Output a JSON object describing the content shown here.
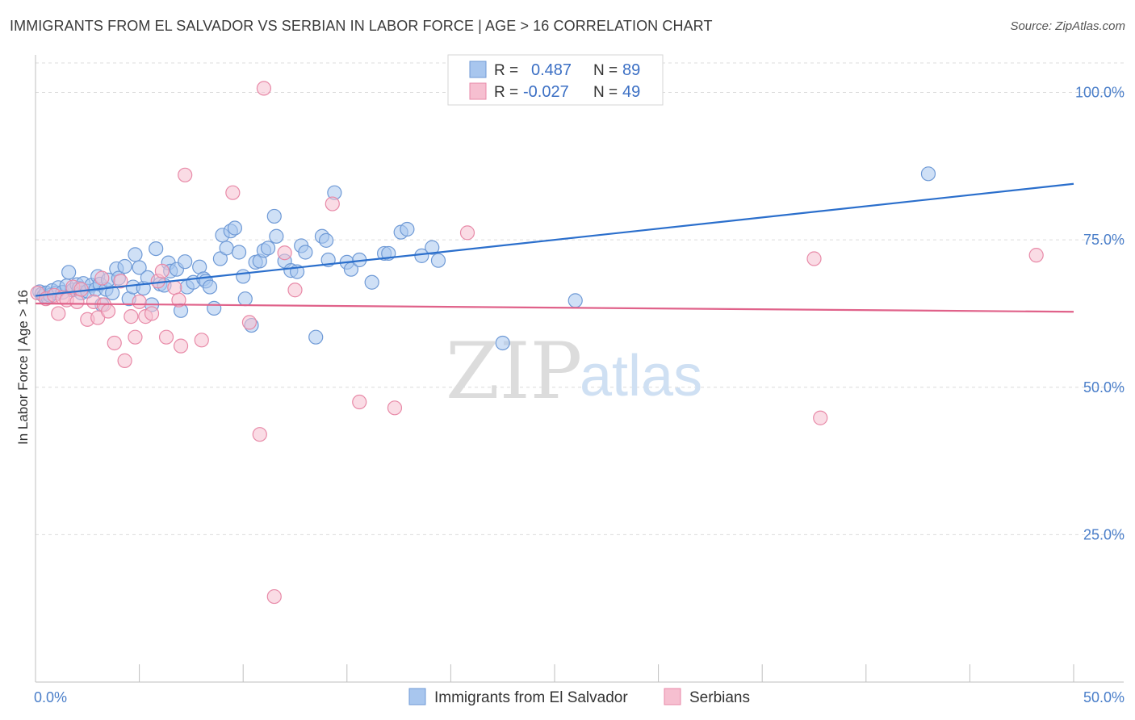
{
  "title": "IMMIGRANTS FROM EL SALVADOR VS SERBIAN IN LABOR FORCE | AGE > 16 CORRELATION CHART",
  "source": "Source: ZipAtlas.com",
  "watermark": {
    "zip": "ZIP",
    "atlas": "atlas"
  },
  "legend": {
    "rows": [
      {
        "r_label": "R =",
        "r_value": "0.487",
        "n_label": "N =",
        "n_value": "89",
        "color": "#a8c6ee",
        "stroke": "#6f9ad6"
      },
      {
        "r_label": "R =",
        "r_value": "-0.027",
        "n_label": "N =",
        "n_value": "49",
        "color": "#f6bfd0",
        "stroke": "#e88aa8"
      }
    ]
  },
  "bottom_legend": [
    {
      "label": "Immigrants from El Salvador",
      "color": "#a8c6ee",
      "stroke": "#6f9ad6"
    },
    {
      "label": "Serbians",
      "color": "#f6bfd0",
      "stroke": "#e88aa8"
    }
  ],
  "chart_data": {
    "type": "scatter",
    "xlabel": "",
    "ylabel": "In Labor Force | Age > 16",
    "xlim": [
      0,
      50
    ],
    "ylim": [
      0,
      105
    ],
    "x_tick_labels": [
      {
        "value": 0,
        "label": "0.0%"
      },
      {
        "value": 50,
        "label": "50.0%"
      }
    ],
    "y_tick_labels": [
      {
        "value": 25,
        "label": "25.0%"
      },
      {
        "value": 50,
        "label": "50.0%"
      },
      {
        "value": 75,
        "label": "75.0%"
      },
      {
        "value": 100,
        "label": "100.0%"
      }
    ],
    "x_minor_ticks": [
      0,
      5,
      10,
      15,
      20,
      25,
      30,
      35,
      40,
      45,
      50
    ],
    "grid": true,
    "series": [
      {
        "name": "Immigrants from El Salvador",
        "color": "#a8c6ee",
        "stroke": "#6f9ad6",
        "trend": {
          "x": [
            0,
            50
          ],
          "y": [
            65.5,
            84.5
          ],
          "color": "#2b6fcc"
        },
        "points": [
          [
            0.2,
            66.2
          ],
          [
            0.3,
            65.8
          ],
          [
            0.4,
            65.5
          ],
          [
            0.5,
            66.0
          ],
          [
            0.6,
            65.2
          ],
          [
            0.7,
            65.6
          ],
          [
            0.8,
            66.4
          ],
          [
            1.0,
            66.0
          ],
          [
            1.1,
            66.9
          ],
          [
            1.3,
            66.1
          ],
          [
            1.5,
            67.2
          ],
          [
            1.6,
            69.5
          ],
          [
            1.8,
            66.5
          ],
          [
            2.0,
            67.4
          ],
          [
            2.1,
            66.8
          ],
          [
            2.2,
            66.0
          ],
          [
            2.3,
            67.6
          ],
          [
            2.5,
            66.3
          ],
          [
            2.7,
            67.3
          ],
          [
            2.9,
            66.6
          ],
          [
            3.0,
            68.8
          ],
          [
            3.1,
            67.5
          ],
          [
            3.2,
            64.0
          ],
          [
            3.4,
            66.6
          ],
          [
            3.5,
            68.2
          ],
          [
            3.7,
            66.0
          ],
          [
            3.9,
            70.1
          ],
          [
            4.0,
            68.5
          ],
          [
            4.3,
            70.5
          ],
          [
            4.5,
            65.0
          ],
          [
            4.7,
            67.0
          ],
          [
            4.8,
            72.5
          ],
          [
            5.0,
            70.3
          ],
          [
            5.2,
            66.8
          ],
          [
            5.4,
            68.6
          ],
          [
            5.6,
            64.0
          ],
          [
            5.8,
            73.5
          ],
          [
            6.0,
            67.5
          ],
          [
            6.2,
            67.3
          ],
          [
            6.4,
            71.1
          ],
          [
            6.5,
            69.7
          ],
          [
            6.8,
            70.0
          ],
          [
            7.0,
            63.0
          ],
          [
            7.2,
            71.3
          ],
          [
            7.3,
            67.0
          ],
          [
            7.6,
            67.8
          ],
          [
            7.9,
            70.4
          ],
          [
            8.1,
            68.4
          ],
          [
            8.2,
            68.0
          ],
          [
            8.4,
            67.0
          ],
          [
            8.6,
            63.4
          ],
          [
            8.9,
            71.8
          ],
          [
            9.0,
            75.8
          ],
          [
            9.2,
            73.6
          ],
          [
            9.4,
            76.5
          ],
          [
            9.6,
            77.0
          ],
          [
            9.8,
            72.9
          ],
          [
            10.0,
            68.8
          ],
          [
            10.1,
            65.0
          ],
          [
            10.4,
            60.5
          ],
          [
            10.6,
            71.2
          ],
          [
            10.8,
            71.4
          ],
          [
            11.0,
            73.2
          ],
          [
            11.2,
            73.6
          ],
          [
            11.5,
            79.0
          ],
          [
            11.6,
            75.6
          ],
          [
            12.0,
            71.4
          ],
          [
            12.3,
            69.8
          ],
          [
            12.6,
            69.6
          ],
          [
            12.8,
            74.0
          ],
          [
            13.0,
            72.9
          ],
          [
            13.5,
            58.5
          ],
          [
            13.8,
            75.6
          ],
          [
            14.0,
            74.9
          ],
          [
            14.1,
            71.6
          ],
          [
            14.4,
            83.0
          ],
          [
            15.0,
            71.2
          ],
          [
            15.2,
            70.0
          ],
          [
            15.6,
            71.6
          ],
          [
            16.2,
            67.8
          ],
          [
            16.8,
            72.7
          ],
          [
            17.0,
            72.7
          ],
          [
            17.6,
            76.3
          ],
          [
            17.9,
            76.8
          ],
          [
            18.6,
            72.3
          ],
          [
            19.1,
            73.7
          ],
          [
            19.4,
            71.5
          ],
          [
            22.5,
            57.5
          ],
          [
            26.0,
            64.7
          ],
          [
            43.0,
            86.2
          ]
        ]
      },
      {
        "name": "Serbians",
        "color": "#f6bfd0",
        "stroke": "#e88aa8",
        "trend": {
          "x": [
            0,
            50
          ],
          "y": [
            64.2,
            62.8
          ],
          "color": "#e0628a"
        },
        "points": [
          [
            0.1,
            66.0
          ],
          [
            0.5,
            65.0
          ],
          [
            0.9,
            65.6
          ],
          [
            1.1,
            62.5
          ],
          [
            1.3,
            65.2
          ],
          [
            1.5,
            64.8
          ],
          [
            1.8,
            67.0
          ],
          [
            2.0,
            64.5
          ],
          [
            2.2,
            66.6
          ],
          [
            2.5,
            61.5
          ],
          [
            2.8,
            64.5
          ],
          [
            3.0,
            61.8
          ],
          [
            3.2,
            68.5
          ],
          [
            3.3,
            64.0
          ],
          [
            3.5,
            62.9
          ],
          [
            3.8,
            57.5
          ],
          [
            4.1,
            68.0
          ],
          [
            4.3,
            54.5
          ],
          [
            4.6,
            62.0
          ],
          [
            4.8,
            58.5
          ],
          [
            5.0,
            64.5
          ],
          [
            5.3,
            62.0
          ],
          [
            5.6,
            62.5
          ],
          [
            5.9,
            68.0
          ],
          [
            6.1,
            69.7
          ],
          [
            6.3,
            58.5
          ],
          [
            6.7,
            66.9
          ],
          [
            6.9,
            64.8
          ],
          [
            7.0,
            57.0
          ],
          [
            7.2,
            86.0
          ],
          [
            8.0,
            58.0
          ],
          [
            9.5,
            83.0
          ],
          [
            10.3,
            61.0
          ],
          [
            10.8,
            42.0
          ],
          [
            11.0,
            100.7
          ],
          [
            11.5,
            14.5
          ],
          [
            12.0,
            72.8
          ],
          [
            12.5,
            66.5
          ],
          [
            14.3,
            81.1
          ],
          [
            15.6,
            47.5
          ],
          [
            17.3,
            46.5
          ],
          [
            20.8,
            76.2
          ],
          [
            37.5,
            71.8
          ],
          [
            37.8,
            44.8
          ],
          [
            48.2,
            72.4
          ]
        ]
      }
    ]
  }
}
